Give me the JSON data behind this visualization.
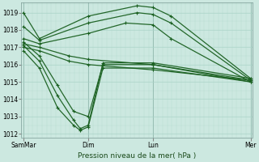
{
  "background_color": "#cce8e0",
  "grid_color": "#aad4c8",
  "line_color": "#1a6020",
  "title": "Pression niveau de la mer( hPa )",
  "ylim": [
    1011.8,
    1019.6
  ],
  "yticks": [
    1012,
    1013,
    1014,
    1015,
    1016,
    1017,
    1018,
    1019
  ],
  "xtick_labels": [
    "SamMar",
    "Dim",
    "Lun",
    "Mer"
  ],
  "xtick_pos": [
    0.0,
    0.285,
    0.57,
    1.0
  ],
  "series": [
    {
      "x": [
        0.0,
        0.02,
        0.285,
        0.4,
        0.52,
        0.57,
        0.7,
        1.0
      ],
      "y": [
        1019.0,
        1018.5,
        1019.0,
        1019.3,
        1019.4,
        1019.2,
        1018.5,
        1015.2
      ]
    },
    {
      "x": [
        0.0,
        0.02,
        0.285,
        0.4,
        0.52,
        0.57,
        0.7,
        1.0
      ],
      "y": [
        1018.2,
        1017.7,
        1018.5,
        1018.9,
        1019.1,
        1018.8,
        1018.0,
        1015.1
      ]
    },
    {
      "x": [
        0.0,
        0.02,
        0.1,
        0.2,
        0.285,
        0.35,
        0.57,
        1.0
      ],
      "y": [
        1017.5,
        1017.3,
        1016.8,
        1016.5,
        1016.3,
        1016.2,
        1016.0,
        1015.0
      ]
    },
    {
      "x": [
        0.0,
        0.02,
        0.1,
        0.2,
        0.285,
        0.35,
        0.57,
        1.0
      ],
      "y": [
        1017.3,
        1017.1,
        1016.6,
        1016.2,
        1016.0,
        1015.9,
        1015.8,
        1015.0
      ]
    },
    {
      "x": [
        0.0,
        0.02,
        0.1,
        0.2,
        0.285,
        0.35,
        0.57,
        1.0
      ],
      "y": [
        1017.1,
        1016.9,
        1016.3,
        1015.9,
        1015.7,
        1015.6,
        1015.5,
        1015.0
      ]
    },
    {
      "x": [
        0.0,
        0.02,
        0.1,
        0.18,
        0.235,
        0.285,
        1.0
      ],
      "y": [
        1017.0,
        1016.5,
        1014.8,
        1013.5,
        1013.0,
        1012.9,
        1015.0
      ]
    },
    {
      "x": [
        0.0,
        0.02,
        0.1,
        0.18,
        0.235,
        0.285,
        1.0
      ],
      "y": [
        1016.8,
        1016.3,
        1014.3,
        1013.0,
        1012.4,
        1012.3,
        1015.1
      ]
    },
    {
      "x": [
        0.0,
        0.02,
        0.1,
        0.18,
        0.235,
        0.285,
        0.35,
        1.0
      ],
      "y": [
        1016.5,
        1016.0,
        1013.8,
        1012.8,
        1012.2,
        1012.5,
        1016.0,
        1015.2
      ]
    }
  ]
}
